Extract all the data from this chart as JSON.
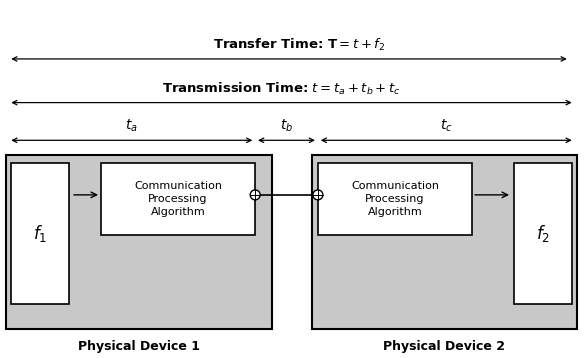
{
  "fig_width": 5.84,
  "fig_height": 3.58,
  "bg_color": "#ffffff",
  "gray_device": "#c8c8c8",
  "white": "#ffffff",
  "black": "#000000",
  "label_device1": "Physical Device 1",
  "label_device2": "Physical Device 2",
  "label_f1": "$f_1$",
  "label_f2": "$f_2$",
  "label_comm": "Communication\nProcessing\nAlgorithm",
  "title_transfer": "Transfer Time: $\\mathbf{T} = t + f_2$",
  "title_transmission": "Transmission Time: $t = t_a + t_b + t_c$",
  "label_ta": "$t_a$",
  "label_tb": "$t_b$",
  "label_tc": "$t_c$",
  "font_size_small": 8,
  "font_size_med": 9,
  "font_size_title": 9.5
}
